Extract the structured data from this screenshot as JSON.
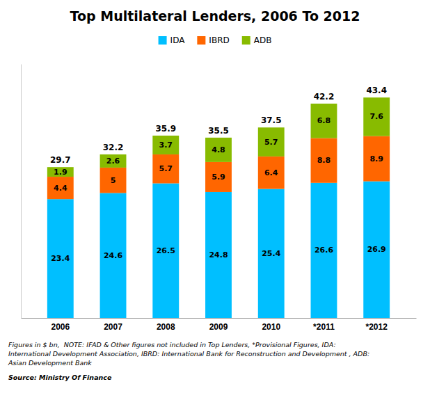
{
  "chart_data": {
    "type": "bar",
    "title": "Top Multilateral Lenders, 2006 To 2012",
    "categories": [
      "2006",
      "2007",
      "2008",
      "2009",
      "2010",
      "*2011",
      "*2012"
    ],
    "series": [
      {
        "name": "IDA",
        "color": "#00BFFF",
        "values": [
          23.4,
          24.6,
          26.5,
          24.8,
          25.4,
          26.6,
          26.9
        ]
      },
      {
        "name": "IBRD",
        "color": "#FF6600",
        "values": [
          4.4,
          5,
          5.7,
          5.9,
          6.4,
          8.8,
          8.9
        ]
      },
      {
        "name": "ADB",
        "color": "#88BB00",
        "values": [
          1.9,
          2.6,
          3.7,
          4.8,
          5.7,
          6.8,
          7.6
        ]
      }
    ],
    "totals": [
      29.7,
      32.2,
      35.9,
      35.5,
      37.5,
      42.2,
      43.4
    ],
    "stacked": true,
    "data_labels": true,
    "tick_labels": "x",
    "grid": false,
    "legend": "top",
    "ylim": [
      0,
      50
    ],
    "footnote": "Figures in $ bn,  NOTE: IFAD & Other figures not included in Top Lenders, *Provisional Figures, IDA:\nInternational Development Association, IBRD: International Bank for Reconstruction and Development , ADB:\nAsian Development Bank",
    "source": "Source: Ministry Of Finance"
  }
}
